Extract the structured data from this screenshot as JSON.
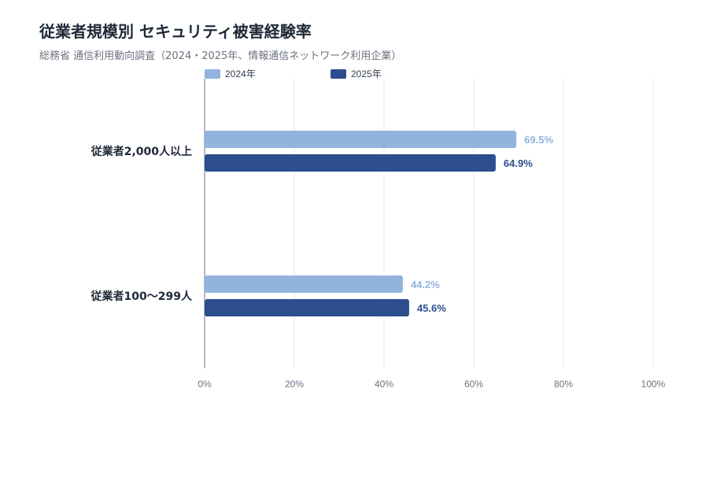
{
  "title": "従業者規模別 セキュリティ被害経験率",
  "subtitle": "総務省 通信利用動向調査（2024・2025年、情報通信ネットワーク利用企業）",
  "colors": {
    "y2024": "#93b3df",
    "y2025": "#2d4e8e",
    "grid": "#e5e7eb",
    "axis": "#9ca3af",
    "tick": "#6b7280",
    "category": "#1f2937"
  },
  "chart_data": {
    "type": "bar",
    "orientation": "horizontal",
    "categories": [
      "従業者2,000人以上",
      "従業者100〜299人"
    ],
    "series": [
      {
        "name": "2024年",
        "values": [
          69.5,
          44.2
        ],
        "labels": [
          "69.5%",
          "44.2%"
        ]
      },
      {
        "name": "2025年",
        "values": [
          64.9,
          45.6
        ],
        "labels": [
          "64.9%",
          "45.6%"
        ]
      }
    ],
    "xlim": [
      0,
      100
    ],
    "xticks": [
      0,
      20,
      40,
      60,
      80,
      100
    ],
    "xtick_labels": [
      "0%",
      "20%",
      "40%",
      "60%",
      "80%",
      "100%"
    ],
    "grid": true,
    "legend": "top-left"
  }
}
